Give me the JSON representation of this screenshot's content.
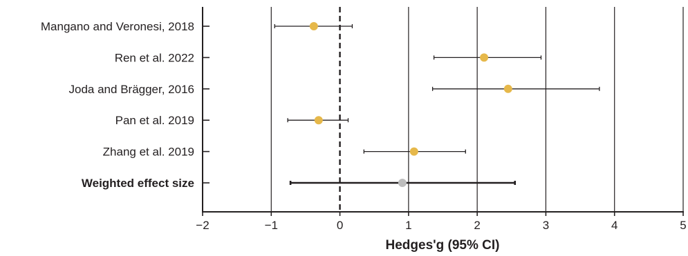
{
  "chart_data": {
    "type": "scatter",
    "subtype": "forest-plot",
    "title": "",
    "xlabel": "Hedges'g (95% CI)",
    "ylabel": "",
    "xlim": [
      -2,
      5
    ],
    "x_ticks": [
      -2,
      -1,
      0,
      1,
      2,
      3,
      4,
      5
    ],
    "x_tick_labels": [
      "−2",
      "−1",
      "0",
      "1",
      "2",
      "3",
      "4",
      "5"
    ],
    "vertical_gridlines": [
      -1,
      1,
      2,
      3,
      4,
      5
    ],
    "reference_line": {
      "x": 0,
      "style": "dashed"
    },
    "grid": true,
    "legend": "none",
    "colors": {
      "study": "#e6b84a",
      "weighted": "#bdbdbd",
      "ink": "#231f20"
    },
    "rows": [
      {
        "label": "Mangano and Veronesi, 2018",
        "estimate": -0.38,
        "ci_low": -0.95,
        "ci_high": 0.18,
        "bold": false,
        "kind": "study"
      },
      {
        "label": "Ren et al. 2022",
        "estimate": 2.1,
        "ci_low": 1.37,
        "ci_high": 2.93,
        "bold": false,
        "kind": "study"
      },
      {
        "label": "Joda and Brägger, 2016",
        "estimate": 2.45,
        "ci_low": 1.35,
        "ci_high": 3.78,
        "bold": false,
        "kind": "study"
      },
      {
        "label": "Pan et al. 2019",
        "estimate": -0.31,
        "ci_low": -0.76,
        "ci_high": 0.12,
        "bold": false,
        "kind": "study"
      },
      {
        "label": "Zhang et al. 2019",
        "estimate": 1.08,
        "ci_low": 0.35,
        "ci_high": 1.83,
        "bold": false,
        "kind": "study"
      },
      {
        "label": "Weighted effect size",
        "estimate": 0.91,
        "ci_low": -0.72,
        "ci_high": 2.55,
        "bold": true,
        "kind": "weighted"
      }
    ]
  }
}
